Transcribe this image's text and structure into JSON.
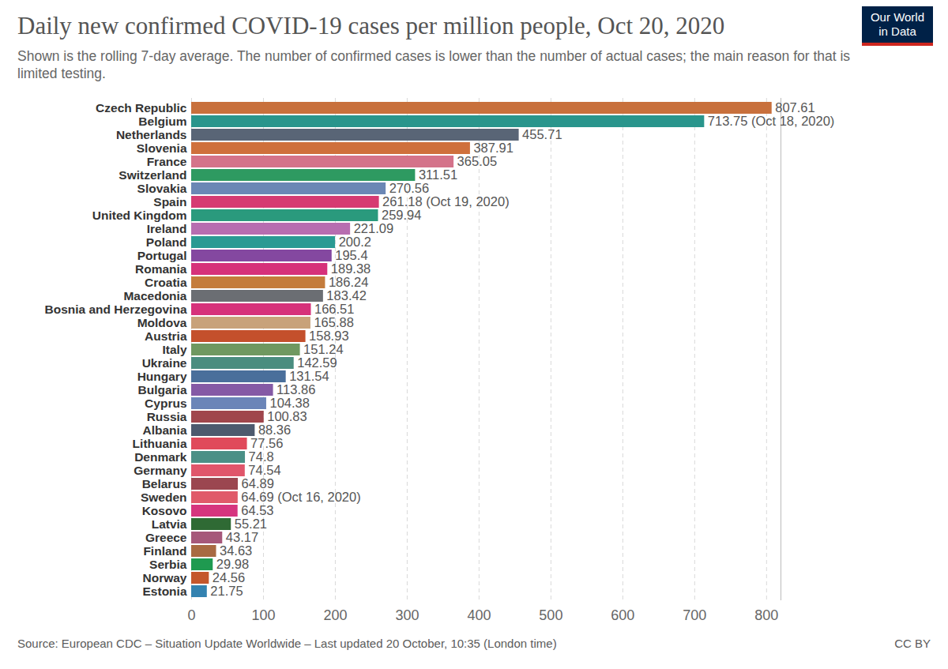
{
  "chart_data": {
    "type": "bar",
    "orientation": "horizontal",
    "title": "Daily new confirmed COVID-19 cases per million people, Oct 20, 2020",
    "subtitle": "Shown is the rolling 7-day average. The number of confirmed cases is lower than the number of actual cases; the main reason for that is limited testing.",
    "caption": "Source: European CDC – Situation Update Worldwide – Last updated 20 October, 10:35 (London time)",
    "license": "CC BY",
    "logo": [
      "Our World",
      "in Data"
    ],
    "categories": [
      "Czech Republic",
      "Belgium",
      "Netherlands",
      "Slovenia",
      "France",
      "Switzerland",
      "Slovakia",
      "Spain",
      "United Kingdom",
      "Ireland",
      "Poland",
      "Portugal",
      "Romania",
      "Croatia",
      "Macedonia",
      "Bosnia and Herzegovina",
      "Moldova",
      "Austria",
      "Italy",
      "Ukraine",
      "Hungary",
      "Bulgaria",
      "Cyprus",
      "Russia",
      "Albania",
      "Lithuania",
      "Denmark",
      "Germany",
      "Belarus",
      "Sweden",
      "Kosovo",
      "Latvia",
      "Greece",
      "Finland",
      "Serbia",
      "Norway",
      "Estonia"
    ],
    "values": [
      807.61,
      713.75,
      455.71,
      387.91,
      365.05,
      311.51,
      270.56,
      261.18,
      259.94,
      221.09,
      200.2,
      195.4,
      189.38,
      186.24,
      183.42,
      166.51,
      165.88,
      158.93,
      151.24,
      142.59,
      131.54,
      113.86,
      104.38,
      100.83,
      88.36,
      77.56,
      74.8,
      74.54,
      64.89,
      64.69,
      64.53,
      55.21,
      43.17,
      34.63,
      29.98,
      24.56,
      21.75
    ],
    "value_labels": [
      "807.61",
      "713.75 (Oct 18, 2020)",
      "455.71",
      "387.91",
      "365.05",
      "311.51",
      "270.56",
      "261.18 (Oct 19, 2020)",
      "259.94",
      "221.09",
      "200.2",
      "195.4",
      "189.38",
      "186.24",
      "183.42",
      "166.51",
      "165.88",
      "158.93",
      "151.24",
      "142.59",
      "131.54",
      "113.86",
      "104.38",
      "100.83",
      "88.36",
      "77.56",
      "74.8",
      "74.54",
      "64.89",
      "64.69 (Oct 16, 2020)",
      "64.53",
      "55.21",
      "43.17",
      "34.63",
      "29.98",
      "24.56",
      "21.75"
    ],
    "colors": [
      "#c8703c",
      "#29958c",
      "#596576",
      "#cf703c",
      "#d4738a",
      "#2e9a61",
      "#6b87b5",
      "#d63a72",
      "#2a9a7d",
      "#b76db0",
      "#2a9a93",
      "#8448a0",
      "#d6317a",
      "#c47c3c",
      "#6b6e73",
      "#d6317a",
      "#c8a27a",
      "#c4502c",
      "#6f9860",
      "#4a8d7f",
      "#4a6f9b",
      "#855aa5",
      "#6b85b8",
      "#a0464c",
      "#4d5a6e",
      "#e04a5b",
      "#4a9086",
      "#e0566b",
      "#9b4650",
      "#e05a6a",
      "#d6357e",
      "#2f6a34",
      "#a6587a",
      "#a86a42",
      "#1f9a50",
      "#c4572c",
      "#3382b0"
    ],
    "xlim": [
      0,
      820
    ],
    "xticks": [
      0,
      100,
      200,
      300,
      400,
      500,
      600,
      700,
      800
    ],
    "grid": true,
    "data_labels": true
  }
}
